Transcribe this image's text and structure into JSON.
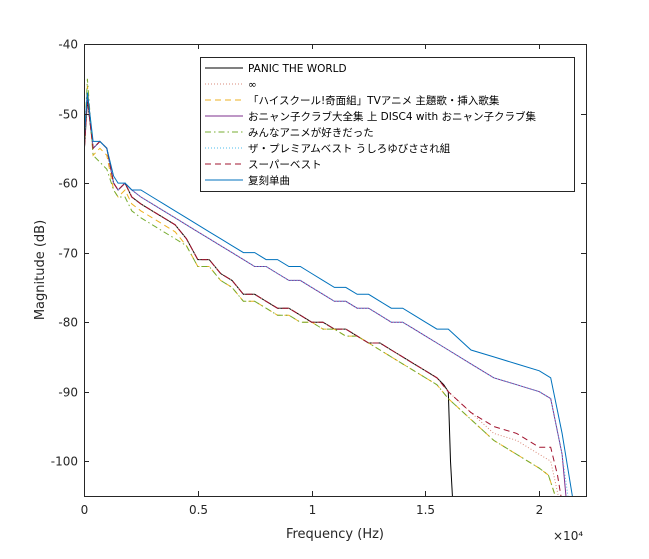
{
  "chart_data": {
    "type": "line",
    "title": "",
    "xlabel": "Frequency (Hz)",
    "ylabel": "Magnitude (dB)",
    "xlim": [
      0,
      22050
    ],
    "ylim": [
      -105,
      -40
    ],
    "x_ticks": [
      0,
      5000,
      10000,
      15000,
      20000
    ],
    "x_tick_labels": [
      "0",
      "0.5",
      "1",
      "1.5",
      "2"
    ],
    "x_multiplier": "×10⁴",
    "y_ticks": [
      -40,
      -50,
      -60,
      -70,
      -80,
      -90,
      -100
    ],
    "y_tick_labels": [
      "-40",
      "-50",
      "-60",
      "-70",
      "-80",
      "-90",
      "-100"
    ],
    "legend_position": "top-right",
    "series": [
      {
        "name": "PANIC THE WORLD",
        "color": "#000000",
        "dash": "solid",
        "x": [
          0,
          150,
          400,
          700,
          1000,
          1300,
          1500,
          1800,
          2100,
          2500,
          3000,
          3500,
          4000,
          4500,
          5000,
          5500,
          6000,
          6500,
          7000,
          7500,
          8000,
          8500,
          9000,
          9500,
          10000,
          10500,
          11000,
          11500,
          12000,
          12500,
          13000,
          13500,
          14000,
          14500,
          15000,
          15500,
          15800,
          16000,
          16100,
          16200
        ],
        "y": [
          -56,
          -48,
          -55,
          -54,
          -55,
          -60,
          -61,
          -60,
          -62,
          -63,
          -64,
          -65,
          -66,
          -68,
          -71,
          -71,
          -73,
          -74,
          -76,
          -76,
          -77,
          -78,
          -78,
          -79,
          -80,
          -80,
          -81,
          -81,
          -82,
          -83,
          -83,
          -84,
          -85,
          -86,
          -87,
          -88,
          -89,
          -90,
          -100,
          -106
        ]
      },
      {
        "name": "∞",
        "color": "#d98a7a",
        "dash": "1,2",
        "x": [
          0,
          150,
          400,
          700,
          1000,
          1300,
          1500,
          1800,
          2100,
          2500,
          3000,
          3500,
          4000,
          4500,
          5000,
          5500,
          6000,
          6500,
          7000,
          7500,
          8000,
          8500,
          9000,
          9500,
          10000,
          10500,
          11000,
          11500,
          12000,
          12500,
          13000,
          13500,
          14000,
          14500,
          15000,
          15500,
          16000,
          17000,
          18000,
          19000,
          20000,
          20500,
          20700,
          20900
        ],
        "y": [
          -56,
          -48,
          -55,
          -54,
          -55,
          -60,
          -61,
          -60,
          -62,
          -63,
          -64,
          -65,
          -66,
          -68,
          -71,
          -71,
          -73,
          -74,
          -76,
          -76,
          -77,
          -78,
          -78,
          -79,
          -80,
          -80,
          -81,
          -81,
          -82,
          -83,
          -83,
          -84,
          -85,
          -86,
          -87,
          -88,
          -90,
          -93,
          -96,
          -97,
          -99,
          -100,
          -103,
          -106
        ]
      },
      {
        "name": "「ハイスクール!奇面組」TVアニメ 主題歌・挿入歌集",
        "color": "#edb120",
        "dash": "6,4",
        "x": [
          0,
          150,
          400,
          700,
          1000,
          1300,
          1500,
          1800,
          2100,
          2500,
          3000,
          3500,
          4000,
          4500,
          5000,
          5500,
          6000,
          6500,
          7000,
          7500,
          8000,
          8500,
          9000,
          9500,
          10000,
          10500,
          11000,
          11500,
          12000,
          12500,
          13000,
          13500,
          14000,
          14500,
          15000,
          15500,
          16000,
          17000,
          18000,
          19000,
          20000,
          20400,
          20600,
          20800
        ],
        "y": [
          -55,
          -46,
          -56,
          -55,
          -56,
          -61,
          -62,
          -61,
          -63,
          -64,
          -65,
          -66,
          -67,
          -69,
          -72,
          -72,
          -74,
          -75,
          -77,
          -77,
          -78,
          -79,
          -79,
          -80,
          -80,
          -81,
          -81,
          -82,
          -82,
          -83,
          -84,
          -85,
          -86,
          -87,
          -88,
          -89,
          -91,
          -94,
          -97,
          -99,
          -101,
          -102,
          -104,
          -106
        ]
      },
      {
        "name": "おニャン子クラブ大全集 上 DISC4 with おニャン子クラブ集",
        "color": "#7e2f8e",
        "dash": "solid",
        "x": [
          0,
          150,
          400,
          700,
          1000,
          1300,
          1500,
          1800,
          2100,
          2500,
          3000,
          3500,
          4000,
          4500,
          5000,
          5500,
          6000,
          6500,
          7000,
          7500,
          8000,
          8500,
          9000,
          9500,
          10000,
          10500,
          11000,
          11500,
          12000,
          12500,
          13000,
          13500,
          14000,
          14500,
          15000,
          15500,
          16000,
          17000,
          18000,
          19000,
          20000,
          20500,
          21000,
          21200
        ],
        "y": [
          -54,
          -47,
          -55,
          -54,
          -55,
          -60,
          -61,
          -60,
          -61,
          -62,
          -63,
          -64,
          -65,
          -66,
          -67,
          -68,
          -69,
          -70,
          -71,
          -72,
          -72,
          -73,
          -74,
          -74,
          -75,
          -76,
          -77,
          -77,
          -78,
          -78,
          -79,
          -80,
          -80,
          -81,
          -82,
          -83,
          -84,
          -86,
          -88,
          -89,
          -90,
          -91,
          -99,
          -106
        ]
      },
      {
        "name": "みんなアニメが好きだった",
        "color": "#77ac30",
        "dash": "6,3,1.5,3",
        "x": [
          0,
          150,
          400,
          700,
          1000,
          1300,
          1500,
          1800,
          2100,
          2500,
          3000,
          3500,
          4000,
          4500,
          5000,
          5500,
          6000,
          6500,
          7000,
          7500,
          8000,
          8500,
          9000,
          9500,
          10000,
          10500,
          11000,
          11500,
          12000,
          12500,
          13000,
          13500,
          14000,
          14500,
          15000,
          15500,
          16000,
          17000,
          18000,
          19000,
          20000,
          20400,
          20600,
          20800
        ],
        "y": [
          -55,
          -45,
          -56,
          -57,
          -58,
          -61,
          -62,
          -62,
          -64,
          -65,
          -66,
          -67,
          -68,
          -69,
          -72,
          -72,
          -74,
          -75,
          -77,
          -77,
          -78,
          -79,
          -79,
          -80,
          -80,
          -81,
          -81,
          -82,
          -82,
          -83,
          -84,
          -85,
          -86,
          -87,
          -88,
          -89,
          -91,
          -94,
          -97,
          -99,
          -101,
          -102,
          -104,
          -106
        ]
      },
      {
        "name": "ザ・プレミアムベスト うしろゆびさされ組",
        "color": "#4dbeee",
        "dash": "1,2",
        "x": [
          0,
          150,
          400,
          700,
          1000,
          1300,
          1500,
          1800,
          2100,
          2500,
          3000,
          3500,
          4000,
          4500,
          5000,
          5500,
          6000,
          6500,
          7000,
          7500,
          8000,
          8500,
          9000,
          9500,
          10000,
          10500,
          11000,
          11500,
          12000,
          12500,
          13000,
          13500,
          14000,
          14500,
          15000,
          15500,
          16000,
          17000,
          18000,
          19000,
          20000,
          20500,
          21000,
          21300
        ],
        "y": [
          -54,
          -47,
          -55,
          -54,
          -55,
          -60,
          -61,
          -60,
          -61,
          -62,
          -63,
          -64,
          -65,
          -66,
          -67,
          -68,
          -69,
          -70,
          -71,
          -72,
          -72,
          -73,
          -74,
          -74,
          -75,
          -76,
          -77,
          -77,
          -78,
          -78,
          -79,
          -80,
          -80,
          -81,
          -82,
          -83,
          -84,
          -86,
          -88,
          -89,
          -90,
          -91,
          -99,
          -106
        ]
      },
      {
        "name": "スーパーベスト",
        "color": "#a2142f",
        "dash": "6,4",
        "x": [
          0,
          150,
          400,
          700,
          1000,
          1300,
          1500,
          1800,
          2100,
          2500,
          3000,
          3500,
          4000,
          4500,
          5000,
          5500,
          6000,
          6500,
          7000,
          7500,
          8000,
          8500,
          9000,
          9500,
          10000,
          10500,
          11000,
          11500,
          12000,
          12500,
          13000,
          13500,
          14000,
          14500,
          15000,
          15500,
          16000,
          17000,
          18000,
          19000,
          20000,
          20500,
          20800,
          21000
        ],
        "y": [
          -56,
          -48,
          -55,
          -54,
          -55,
          -60,
          -61,
          -60,
          -62,
          -63,
          -64,
          -65,
          -66,
          -68,
          -71,
          -71,
          -73,
          -74,
          -76,
          -76,
          -77,
          -78,
          -78,
          -79,
          -80,
          -80,
          -81,
          -81,
          -82,
          -83,
          -83,
          -84,
          -85,
          -86,
          -87,
          -88,
          -90,
          -93,
          -95,
          -96,
          -98,
          -98,
          -102,
          -106
        ]
      },
      {
        "name": "复刻单曲",
        "color": "#0072bd",
        "dash": "solid",
        "x": [
          0,
          150,
          400,
          700,
          1000,
          1300,
          1500,
          1800,
          2100,
          2500,
          3000,
          3500,
          4000,
          4500,
          5000,
          5500,
          6000,
          6500,
          7000,
          7500,
          8000,
          8500,
          9000,
          9500,
          10000,
          10500,
          11000,
          11500,
          12000,
          12500,
          13000,
          13500,
          14000,
          14500,
          15000,
          15500,
          16000,
          17000,
          18000,
          19000,
          20000,
          20500,
          21000,
          21500
        ],
        "y": [
          -54,
          -47,
          -54,
          -54,
          -55,
          -59,
          -60,
          -60,
          -61,
          -61,
          -62,
          -63,
          -64,
          -65,
          -66,
          -67,
          -68,
          -69,
          -70,
          -70,
          -71,
          -71,
          -72,
          -72,
          -73,
          -74,
          -75,
          -75,
          -76,
          -76,
          -77,
          -78,
          -78,
          -79,
          -80,
          -81,
          -81,
          -84,
          -85,
          -86,
          -87,
          -88,
          -96,
          -106
        ]
      }
    ]
  }
}
